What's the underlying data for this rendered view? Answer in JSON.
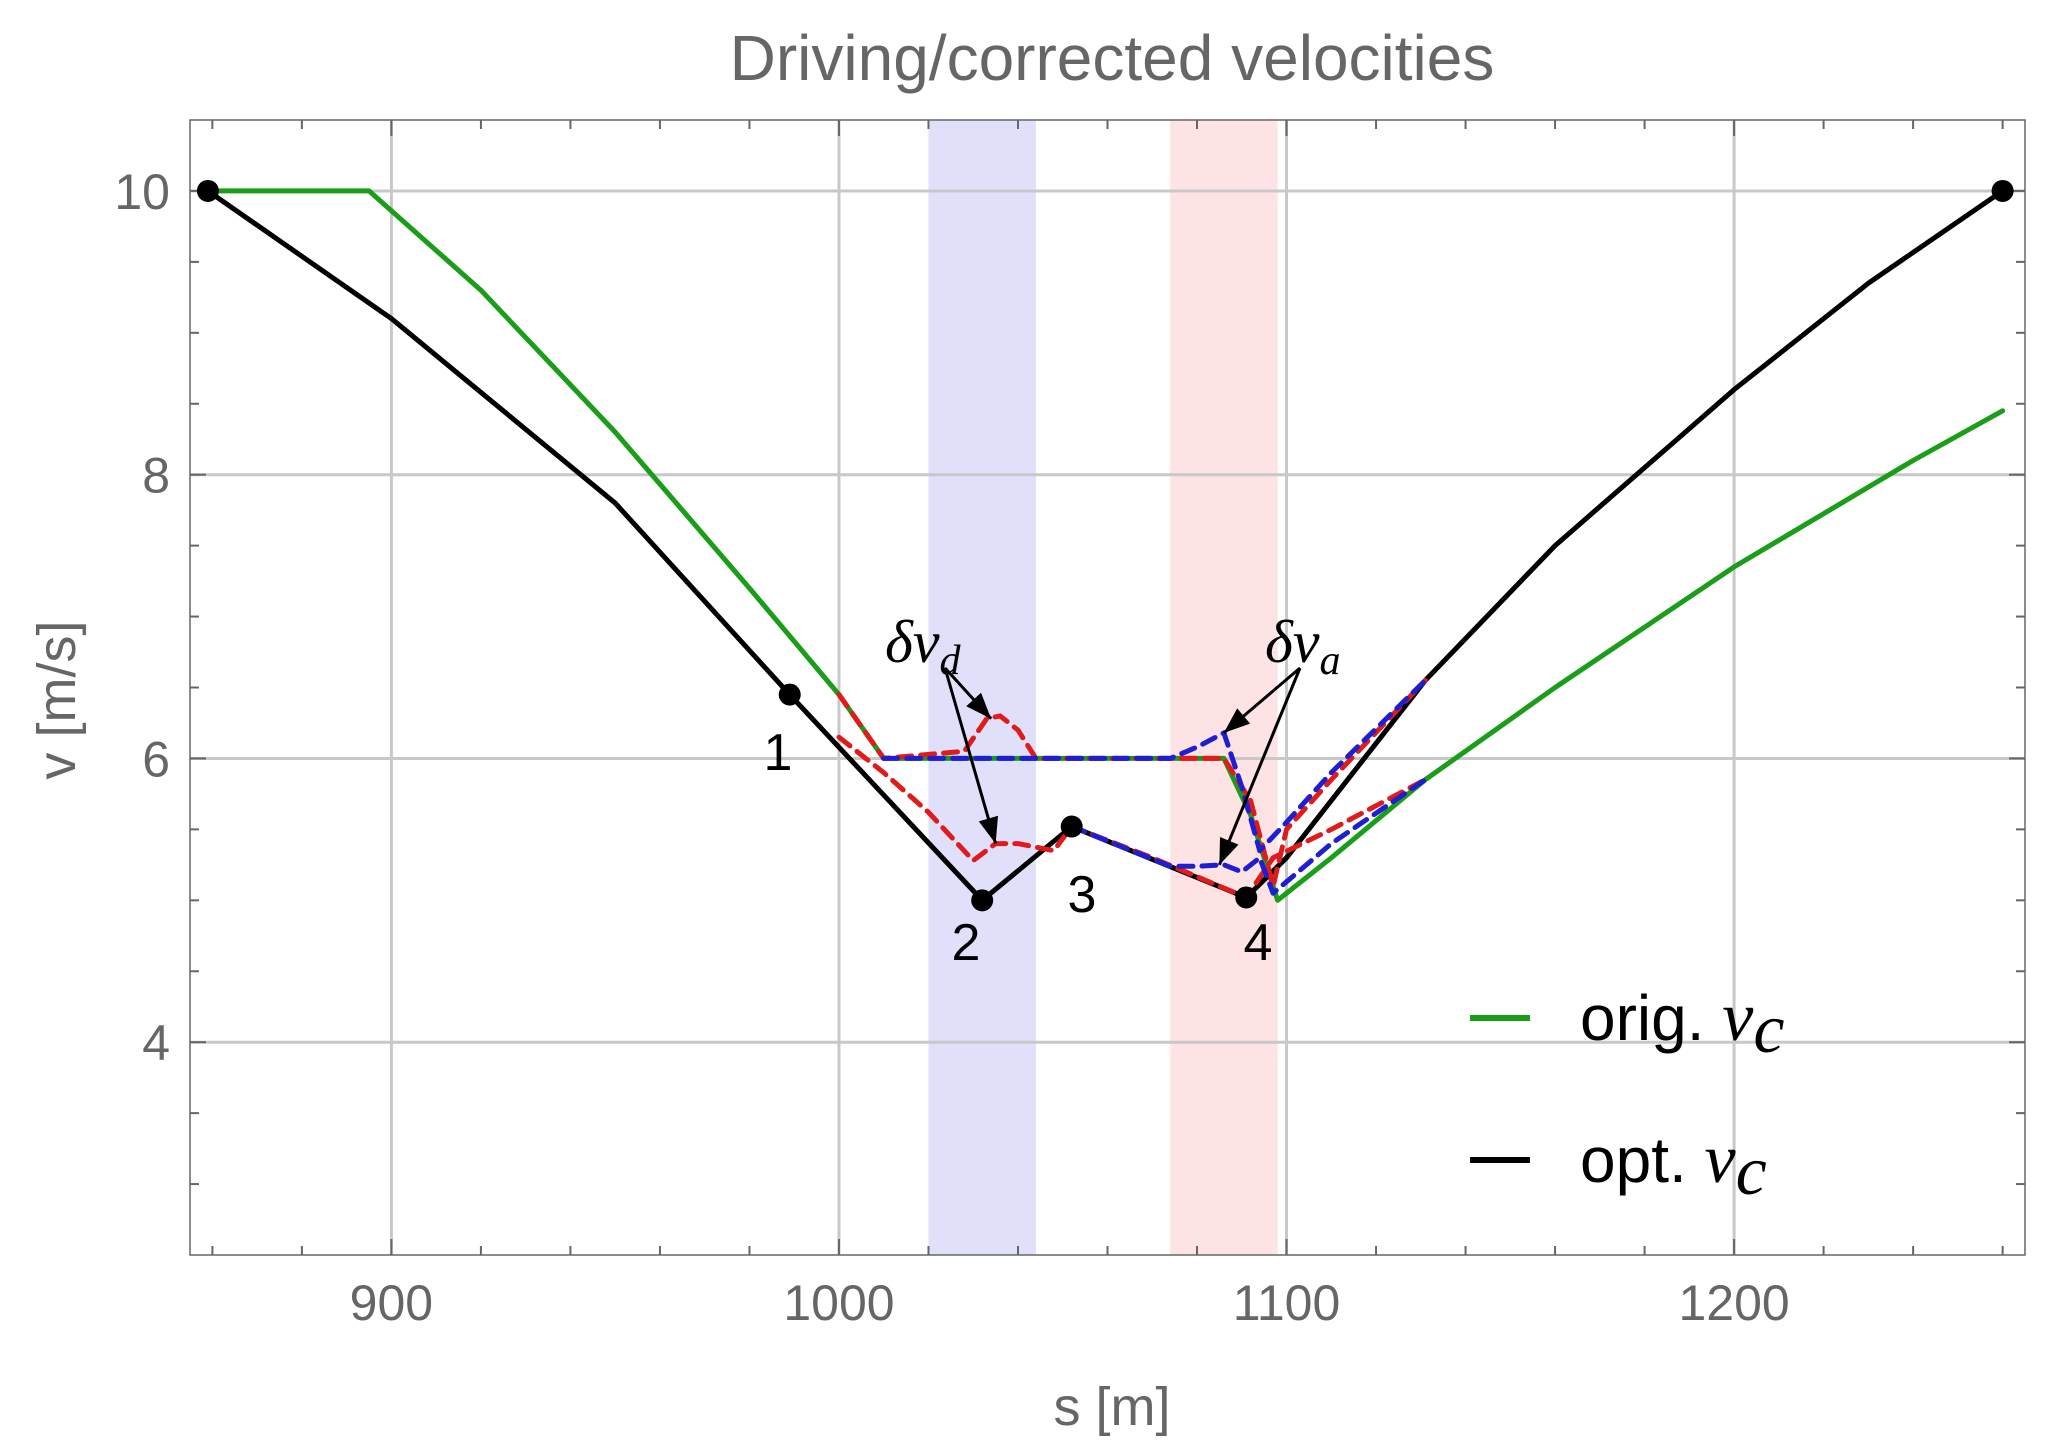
{
  "chart_data": {
    "type": "line",
    "title": "Driving/corrected velocities",
    "xlabel": "s [m]",
    "ylabel": "v [m/s]",
    "xlim": [
      855,
      1265
    ],
    "ylim": [
      2.5,
      10.5
    ],
    "xticks": [
      900,
      1000,
      1100,
      1200
    ],
    "yticks": [
      4,
      6,
      8,
      10
    ],
    "xtick_labels": [
      "900",
      "1000",
      "1100",
      "1200"
    ],
    "ytick_labels": [
      "4",
      "6",
      "8",
      "10"
    ],
    "grid": true,
    "colors": {
      "orig": "#1a9e1a",
      "opt": "#000000",
      "red_dashed": "#e01b1b",
      "blue_dashed": "#1f1fd1",
      "axis_text": "#666666",
      "band_blue": "#e0e0fa",
      "band_red": "#fde3e3"
    },
    "bands": [
      {
        "name": "blue-band",
        "x": [
          1020,
          1044
        ],
        "color": "#e0e0fa"
      },
      {
        "name": "red-band",
        "x": [
          1074,
          1098
        ],
        "color": "#fde3e3"
      }
    ],
    "series": [
      {
        "name": "orig. v_c",
        "color": "#1a9e1a",
        "style": "solid",
        "x": [
          859,
          895,
          920,
          950,
          980,
          1000,
          1010,
          1086,
          1092,
          1098,
          1110,
          1131,
          1160,
          1200,
          1240,
          1260
        ],
        "y": [
          10.0,
          10.0,
          9.3,
          8.3,
          7.2,
          6.45,
          6.0,
          6.0,
          5.6,
          5.0,
          5.3,
          5.85,
          6.5,
          7.35,
          8.1,
          8.45
        ]
      },
      {
        "name": "opt. v_c",
        "color": "#000000",
        "style": "solid",
        "x": [
          859,
          900,
          950,
          989,
          1032,
          1052,
          1091,
          1100,
          1131,
          1160,
          1200,
          1230,
          1260
        ],
        "y": [
          10.0,
          9.1,
          7.8,
          6.45,
          5.0,
          5.52,
          5.02,
          5.3,
          6.55,
          7.5,
          8.6,
          9.35,
          10.0
        ]
      },
      {
        "name": "red dashed (upper)",
        "color": "#e01b1b",
        "style": "dashed",
        "x": [
          1000,
          1010,
          1028,
          1033,
          1036,
          1040,
          1044,
          1086,
          1092,
          1097,
          1100,
          1110,
          1131
        ],
        "y": [
          6.45,
          6.0,
          6.05,
          6.28,
          6.3,
          6.2,
          6.0,
          6.0,
          5.7,
          5.1,
          5.5,
          5.85,
          6.55
        ]
      },
      {
        "name": "red dashed (lower)",
        "color": "#e01b1b",
        "style": "dashed",
        "x": [
          1000,
          1010,
          1020,
          1030,
          1035,
          1040,
          1048,
          1052,
          1070,
          1091,
          1097,
          1110,
          1131
        ],
        "y": [
          6.15,
          5.9,
          5.62,
          5.28,
          5.4,
          5.4,
          5.35,
          5.52,
          5.3,
          5.02,
          5.3,
          5.5,
          5.85
        ]
      },
      {
        "name": "blue dashed (upper)",
        "color": "#1f1fd1",
        "style": "dashed",
        "x": [
          1010,
          1074,
          1080,
          1086,
          1090,
          1094,
          1100,
          1110,
          1131
        ],
        "y": [
          6.0,
          6.0,
          6.08,
          6.18,
          5.8,
          5.35,
          5.55,
          5.9,
          6.55
        ]
      },
      {
        "name": "blue dashed (lower)",
        "color": "#1f1fd1",
        "style": "dashed",
        "x": [
          1052,
          1074,
          1080,
          1086,
          1090,
          1094,
          1097,
          1110,
          1131
        ],
        "y": [
          5.52,
          5.24,
          5.24,
          5.25,
          5.2,
          5.3,
          5.05,
          5.4,
          5.85
        ]
      }
    ],
    "points": [
      {
        "x": 859,
        "y": 10.0,
        "label": ""
      },
      {
        "x": 989,
        "y": 6.45,
        "label": "1"
      },
      {
        "x": 1032,
        "y": 5.0,
        "label": "2"
      },
      {
        "x": 1052,
        "y": 5.52,
        "label": "3"
      },
      {
        "x": 1091,
        "y": 5.02,
        "label": "4"
      },
      {
        "x": 1260,
        "y": 10.0,
        "label": ""
      }
    ],
    "annotations": [
      {
        "base": "δv",
        "sub": "d",
        "targets": [
          {
            "x": 1034,
            "y": 6.28
          },
          {
            "x": 1035,
            "y": 5.4
          }
        ]
      },
      {
        "base": "δv",
        "sub": "a",
        "targets": [
          {
            "x": 1086,
            "y": 6.18
          },
          {
            "x": 1085,
            "y": 5.25
          }
        ]
      }
    ],
    "legend": {
      "position": "bottom-right",
      "entries": [
        {
          "text": "orig. ",
          "sub": "v",
          "subsub": "c",
          "color": "#1a9e1a"
        },
        {
          "text": "opt. ",
          "sub": "v",
          "subsub": "c",
          "color": "#000000"
        }
      ]
    }
  }
}
